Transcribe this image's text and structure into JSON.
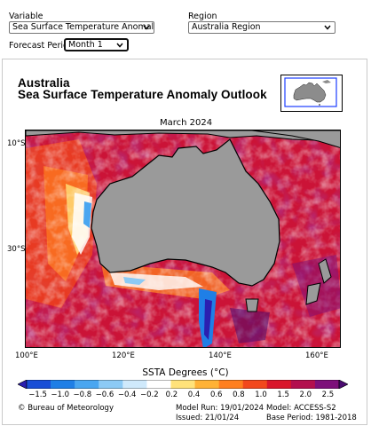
{
  "controls": {
    "variable_label": "Variable",
    "variable_value": "Sea Surface Temperature Anomaly",
    "region_label": "Region",
    "region_value": "Australia Region",
    "forecast_label": "Forecast Period",
    "forecast_value": "Month 1"
  },
  "product": {
    "title_line1": "Australia",
    "title_line2": "Sea Surface Temperature Anomaly Outlook",
    "map_title": "March 2024",
    "lat_ticks": [
      "10°S",
      "30°S"
    ],
    "lon_ticks": [
      "100°E",
      "120°E",
      "140°E",
      "160°E"
    ]
  },
  "colorbar": {
    "title": "SSTA Degrees (°C)",
    "labels": [
      "−1.5",
      "−1.0",
      "−0.8",
      "−0.6",
      "−0.4",
      "−0.2",
      "0.2",
      "0.4",
      "0.6",
      "0.8",
      "1.0",
      "1.5",
      "2.0",
      "2.5"
    ],
    "colors": [
      "#2b1fb0",
      "#1a4ed6",
      "#1f7fe6",
      "#4aa6f0",
      "#8ccaf5",
      "#cfe9fb",
      "#ffffff",
      "#ffe27a",
      "#ffb236",
      "#ff7f1f",
      "#f2481c",
      "#d9162b",
      "#b30f4e",
      "#7d0f7a",
      "#4a0b70"
    ]
  },
  "footer": {
    "credit": "© Bureau of Meteorology",
    "model_run": "Model Run: 19/01/2024",
    "issued": "Issued: 21/01/24",
    "model": "Model: ACCESS-S2",
    "base_period": "Base Period: 1981-2018"
  }
}
